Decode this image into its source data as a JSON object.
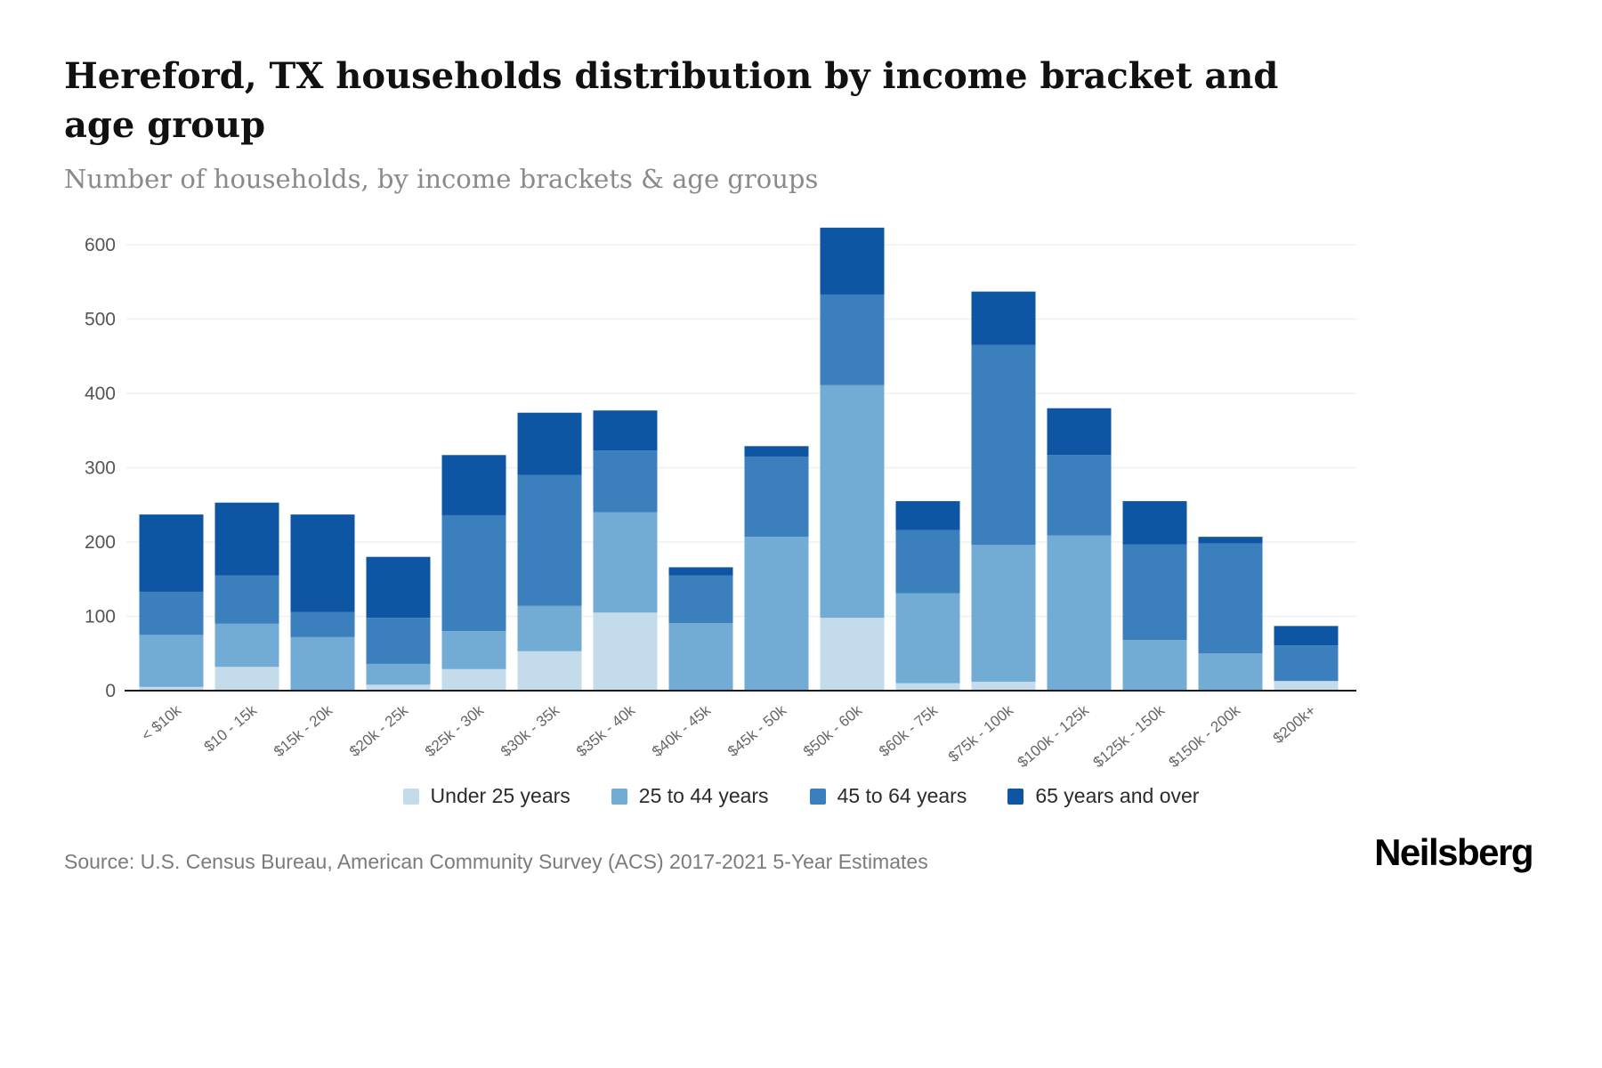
{
  "title": "Hereford, TX households distribution by income bracket and age group",
  "subtitle": "Number of households, by income brackets & age groups",
  "source": "Source: U.S. Census Bureau, American Community Survey (ACS) 2017-2021 5-Year Estimates",
  "brand": "Neilsberg",
  "chart_data": {
    "type": "bar",
    "stacked": true,
    "title": "Hereford, TX households distribution by income bracket and age group",
    "xlabel": "",
    "ylabel": "Number of households",
    "ylim": [
      0,
      650
    ],
    "yticks": [
      0,
      100,
      200,
      300,
      400,
      500,
      600
    ],
    "grid": true,
    "legend_position": "bottom",
    "categories": [
      "< $10k",
      "$10 - 15k",
      "$15k - 20k",
      "$20k - 25k",
      "$25k - 30k",
      "$30k - 35k",
      "$35k - 40k",
      "$40k - 45k",
      "$45k - 50k",
      "$50k - 60k",
      "$60k - 75k",
      "$75k - 100k",
      "$100k - 125k",
      "$125k - 150k",
      "$150k - 200k",
      "$200k+"
    ],
    "series": [
      {
        "name": "Under 25 years",
        "color": "#c3dbea",
        "values": [
          5,
          32,
          0,
          8,
          29,
          53,
          105,
          0,
          0,
          98,
          10,
          12,
          0,
          0,
          0,
          13
        ]
      },
      {
        "name": "25 to 44 years",
        "color": "#72acd4",
        "values": [
          70,
          58,
          72,
          28,
          51,
          61,
          135,
          91,
          207,
          313,
          121,
          184,
          209,
          68,
          50,
          0
        ]
      },
      {
        "name": "45 to 64 years",
        "color": "#3b7fbd",
        "values": [
          58,
          65,
          34,
          62,
          156,
          176,
          83,
          64,
          108,
          122,
          85,
          269,
          108,
          129,
          148,
          48
        ]
      },
      {
        "name": "65 years and over",
        "color": "#0e56a4",
        "values": [
          104,
          98,
          131,
          82,
          81,
          84,
          54,
          11,
          14,
          90,
          39,
          72,
          63,
          58,
          9,
          26
        ]
      }
    ],
    "axis_color": "#1a1a1a",
    "gridline_color": "#f0f0f0",
    "tick_label_color": "#555555",
    "x_label_color": "#666666"
  }
}
